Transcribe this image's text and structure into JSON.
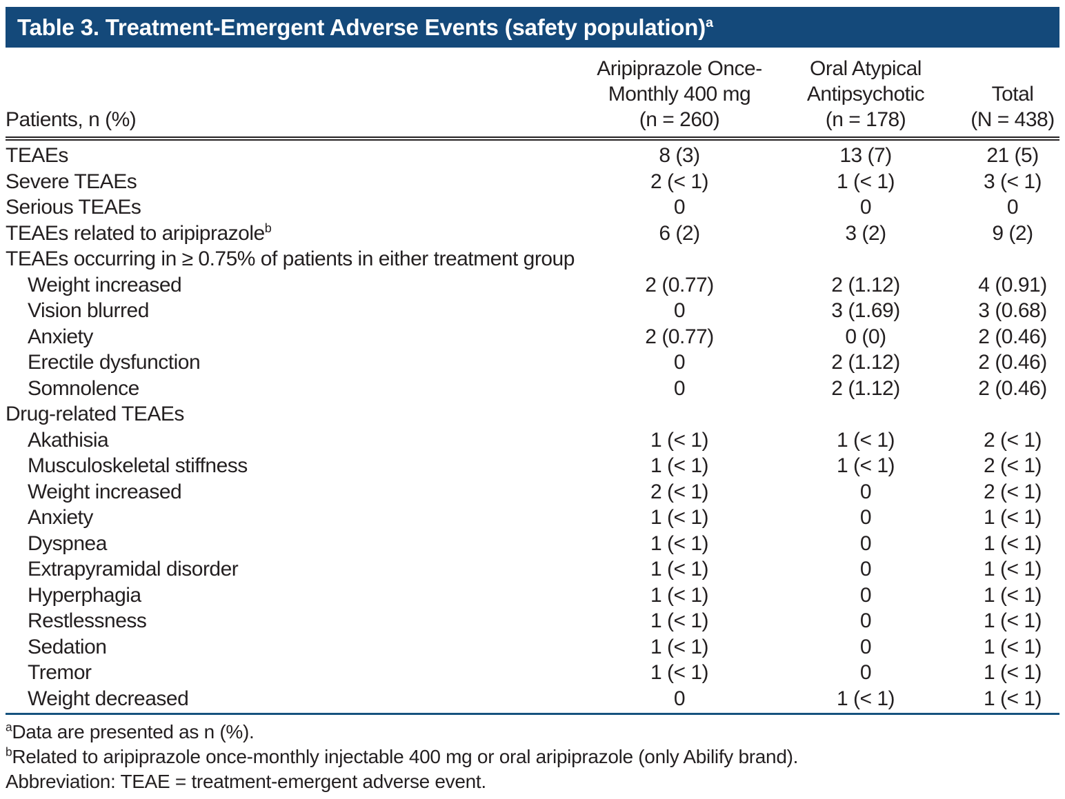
{
  "title": {
    "text": "Table 3. Treatment-Emergent Adverse Events (safety population)",
    "sup": "a"
  },
  "table": {
    "column_headers": {
      "col1": "Patients, n (%)",
      "col2": "Aripiprazole Once-\nMonthly 400 mg\n(n = 260)",
      "col3": "Oral Atypical\nAntipsychotic\n(n = 178)",
      "col4": "Total\n(N = 438)"
    },
    "rows": [
      {
        "label": "TEAEs",
        "indent": false,
        "values": [
          "8 (3)",
          "13 (7)",
          "21 (5)"
        ]
      },
      {
        "label": "Severe TEAEs",
        "indent": false,
        "values": [
          "2 (< 1)",
          "1 (< 1)",
          "3 (< 1)"
        ]
      },
      {
        "label": "Serious TEAEs",
        "indent": false,
        "values": [
          "0",
          "0",
          "0"
        ]
      },
      {
        "label": "TEAEs related to aripiprazole",
        "sup": "b",
        "indent": false,
        "values": [
          "6 (2)",
          "3 (2)",
          "9 (2)"
        ]
      },
      {
        "label": "TEAEs occurring in ≥ 0.75% of patients in either treatment group",
        "indent": false,
        "values": [
          "",
          "",
          ""
        ]
      },
      {
        "label": "Weight increased",
        "indent": true,
        "values": [
          "2 (0.77)",
          "2 (1.12)",
          "4 (0.91)"
        ]
      },
      {
        "label": "Vision blurred",
        "indent": true,
        "values": [
          "0",
          "3 (1.69)",
          "3 (0.68)"
        ]
      },
      {
        "label": "Anxiety",
        "indent": true,
        "values": [
          "2 (0.77)",
          "0 (0)",
          "2 (0.46)"
        ]
      },
      {
        "label": "Erectile dysfunction",
        "indent": true,
        "values": [
          "0",
          "2 (1.12)",
          "2 (0.46)"
        ]
      },
      {
        "label": "Somnolence",
        "indent": true,
        "values": [
          "0",
          "2 (1.12)",
          "2 (0.46)"
        ]
      },
      {
        "label": "Drug-related TEAEs",
        "indent": false,
        "values": [
          "",
          "",
          ""
        ]
      },
      {
        "label": "Akathisia",
        "indent": true,
        "values": [
          "1 (< 1)",
          "1 (< 1)",
          "2 (< 1)"
        ]
      },
      {
        "label": "Musculoskeletal stiffness",
        "indent": true,
        "values": [
          "1 (< 1)",
          "1 (< 1)",
          "2 (< 1)"
        ]
      },
      {
        "label": "Weight increased",
        "indent": true,
        "values": [
          "2 (< 1)",
          "0",
          "2 (< 1)"
        ]
      },
      {
        "label": "Anxiety",
        "indent": true,
        "values": [
          "1 (< 1)",
          "0",
          "1 (< 1)"
        ]
      },
      {
        "label": "Dyspnea",
        "indent": true,
        "values": [
          "1 (< 1)",
          "0",
          "1 (< 1)"
        ]
      },
      {
        "label": "Extrapyramidal disorder",
        "indent": true,
        "values": [
          "1 (< 1)",
          "0",
          "1 (< 1)"
        ]
      },
      {
        "label": "Hyperphagia",
        "indent": true,
        "values": [
          "1 (< 1)",
          "0",
          "1 (< 1)"
        ]
      },
      {
        "label": "Restlessness",
        "indent": true,
        "values": [
          "1 (< 1)",
          "0",
          "1 (< 1)"
        ]
      },
      {
        "label": "Sedation",
        "indent": true,
        "values": [
          "1 (< 1)",
          "0",
          "1 (< 1)"
        ]
      },
      {
        "label": "Tremor",
        "indent": true,
        "values": [
          "1 (< 1)",
          "0",
          "1 (< 1)"
        ]
      },
      {
        "label": "Weight decreased",
        "indent": true,
        "values": [
          "0",
          "1 (< 1)",
          "1 (< 1)"
        ]
      }
    ]
  },
  "footnotes": [
    {
      "sup": "a",
      "text": "Data are presented as n (%)."
    },
    {
      "sup": "b",
      "text": "Related to aripiprazole once-monthly injectable 400 mg or oral aripiprazole (only Abilify brand)."
    },
    {
      "sup": "",
      "text": "Abbreviation: TEAE = treatment-emergent adverse event."
    }
  ],
  "colors": {
    "header_bar_blue": "#14497a",
    "rule_blue": "#15527e",
    "rule_black": "#231f20",
    "text": "#231f20"
  }
}
